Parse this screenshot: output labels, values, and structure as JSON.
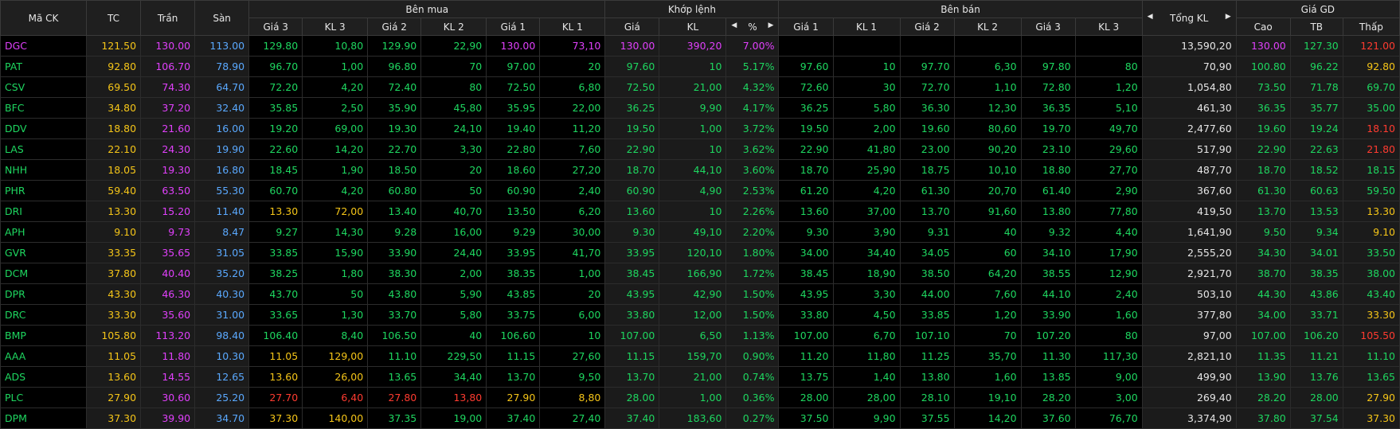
{
  "colors": {
    "up": "#1ed760",
    "down": "#ff3b30",
    "ref": "#f5c518",
    "ceil": "#e040fb",
    "floor": "#5aa9ff"
  },
  "header": {
    "ma_ck": "Mã CK",
    "tc": "TC",
    "tran": "Trần",
    "san": "Sàn",
    "ben_mua": "Bên mua",
    "khop_lenh": "Khớp lệnh",
    "ben_ban": "Bên bán",
    "tong_kl": "Tổng KL",
    "gia_gd": "Giá GD",
    "gia3": "Giá 3",
    "kl3": "KL 3",
    "gia2": "Giá 2",
    "kl2": "KL 2",
    "gia1": "Giá 1",
    "kl1": "KL 1",
    "gia": "Giá",
    "kl": "KL",
    "pct": "%",
    "cao": "Cao",
    "tb": "TB",
    "thap": "Thấp"
  },
  "rows": [
    {
      "sym": "DGC",
      "tc": "121.50",
      "tran": "130.00",
      "san": "113.00",
      "bg3": "129.80",
      "bk3": "10,80",
      "bg2": "129.90",
      "bk2": "22,90",
      "bg1": "130.00",
      "bk1": "73,10",
      "mp": "130.00",
      "mk": "390,20",
      "pct": "7.00%",
      "sg1": "",
      "sk1": "",
      "sg2": "",
      "sk2": "",
      "sg3": "",
      "sk3": "",
      "tot": "13,590,20",
      "hi": "130.00",
      "avg": "127.30",
      "lo": "121.00",
      "c": {
        "sym": "ceil",
        "bg3": "up",
        "bk3": "up",
        "bg2": "up",
        "bk2": "up",
        "bg1": "ceil",
        "bk1": "ceil",
        "mp": "ceil",
        "mk": "ceil",
        "pct": "ceil",
        "hi": "ceil",
        "avg": "up",
        "lo": "down"
      }
    },
    {
      "sym": "PAT",
      "tc": "92.80",
      "tran": "106.70",
      "san": "78.90",
      "bg3": "96.70",
      "bk3": "1,00",
      "bg2": "96.80",
      "bk2": "70",
      "bg1": "97.00",
      "bk1": "20",
      "mp": "97.60",
      "mk": "10",
      "pct": "5.17%",
      "sg1": "97.60",
      "sk1": "10",
      "sg2": "97.70",
      "sk2": "6,30",
      "sg3": "97.80",
      "sk3": "80",
      "tot": "70,90",
      "hi": "100.80",
      "avg": "96.22",
      "lo": "92.80",
      "c": {
        "lo": "ref"
      }
    },
    {
      "sym": "CSV",
      "tc": "69.50",
      "tran": "74.30",
      "san": "64.70",
      "bg3": "72.20",
      "bk3": "4,20",
      "bg2": "72.40",
      "bk2": "80",
      "bg1": "72.50",
      "bk1": "6,80",
      "mp": "72.50",
      "mk": "21,00",
      "pct": "4.32%",
      "sg1": "72.60",
      "sk1": "30",
      "sg2": "72.70",
      "sk2": "1,10",
      "sg3": "72.80",
      "sk3": "1,20",
      "tot": "1,054,80",
      "hi": "73.50",
      "avg": "71.78",
      "lo": "69.70",
      "c": {}
    },
    {
      "sym": "BFC",
      "tc": "34.80",
      "tran": "37.20",
      "san": "32.40",
      "bg3": "35.85",
      "bk3": "2,50",
      "bg2": "35.90",
      "bk2": "45,80",
      "bg1": "35.95",
      "bk1": "22,00",
      "mp": "36.25",
      "mk": "9,90",
      "pct": "4.17%",
      "sg1": "36.25",
      "sk1": "5,80",
      "sg2": "36.30",
      "sk2": "12,30",
      "sg3": "36.35",
      "sk3": "5,10",
      "tot": "461,30",
      "hi": "36.35",
      "avg": "35.77",
      "lo": "35.00",
      "c": {}
    },
    {
      "sym": "DDV",
      "tc": "18.80",
      "tran": "21.60",
      "san": "16.00",
      "bg3": "19.20",
      "bk3": "69,00",
      "bg2": "19.30",
      "bk2": "24,10",
      "bg1": "19.40",
      "bk1": "11,20",
      "mp": "19.50",
      "mk": "1,00",
      "pct": "3.72%",
      "sg1": "19.50",
      "sk1": "2,00",
      "sg2": "19.60",
      "sk2": "80,60",
      "sg3": "19.70",
      "sk3": "49,70",
      "tot": "2,477,60",
      "hi": "19.60",
      "avg": "19.24",
      "lo": "18.10",
      "c": {
        "lo": "down"
      }
    },
    {
      "sym": "LAS",
      "tc": "22.10",
      "tran": "24.30",
      "san": "19.90",
      "bg3": "22.60",
      "bk3": "14,20",
      "bg2": "22.70",
      "bk2": "3,30",
      "bg1": "22.80",
      "bk1": "7,60",
      "mp": "22.90",
      "mk": "10",
      "pct": "3.62%",
      "sg1": "22.90",
      "sk1": "41,80",
      "sg2": "23.00",
      "sk2": "90,20",
      "sg3": "23.10",
      "sk3": "29,60",
      "tot": "517,90",
      "hi": "22.90",
      "avg": "22.63",
      "lo": "21.80",
      "c": {
        "lo": "down"
      }
    },
    {
      "sym": "NHH",
      "tc": "18.05",
      "tran": "19.30",
      "san": "16.80",
      "bg3": "18.45",
      "bk3": "1,90",
      "bg2": "18.50",
      "bk2": "20",
      "bg1": "18.60",
      "bk1": "27,20",
      "mp": "18.70",
      "mk": "44,10",
      "pct": "3.60%",
      "sg1": "18.70",
      "sk1": "25,90",
      "sg2": "18.75",
      "sk2": "10,10",
      "sg3": "18.80",
      "sk3": "27,70",
      "tot": "487,70",
      "hi": "18.70",
      "avg": "18.52",
      "lo": "18.15",
      "c": {}
    },
    {
      "sym": "PHR",
      "tc": "59.40",
      "tran": "63.50",
      "san": "55.30",
      "bg3": "60.70",
      "bk3": "4,20",
      "bg2": "60.80",
      "bk2": "50",
      "bg1": "60.90",
      "bk1": "2,40",
      "mp": "60.90",
      "mk": "4,90",
      "pct": "2.53%",
      "sg1": "61.20",
      "sk1": "4,20",
      "sg2": "61.30",
      "sk2": "20,70",
      "sg3": "61.40",
      "sk3": "2,90",
      "tot": "367,60",
      "hi": "61.30",
      "avg": "60.63",
      "lo": "59.50",
      "c": {}
    },
    {
      "sym": "DRI",
      "tc": "13.30",
      "tran": "15.20",
      "san": "11.40",
      "bg3": "13.30",
      "bk3": "72,00",
      "bg2": "13.40",
      "bk2": "40,70",
      "bg1": "13.50",
      "bk1": "6,20",
      "mp": "13.60",
      "mk": "10",
      "pct": "2.26%",
      "sg1": "13.60",
      "sk1": "37,00",
      "sg2": "13.70",
      "sk2": "91,60",
      "sg3": "13.80",
      "sk3": "77,80",
      "tot": "419,50",
      "hi": "13.70",
      "avg": "13.53",
      "lo": "13.30",
      "c": {
        "bg3": "ref",
        "bk3": "ref",
        "lo": "ref"
      }
    },
    {
      "sym": "APH",
      "tc": "9.10",
      "tran": "9.73",
      "san": "8.47",
      "bg3": "9.27",
      "bk3": "14,30",
      "bg2": "9.28",
      "bk2": "16,00",
      "bg1": "9.29",
      "bk1": "30,00",
      "mp": "9.30",
      "mk": "49,10",
      "pct": "2.20%",
      "sg1": "9.30",
      "sk1": "3,90",
      "sg2": "9.31",
      "sk2": "40",
      "sg3": "9.32",
      "sk3": "4,40",
      "tot": "1,641,90",
      "hi": "9.50",
      "avg": "9.34",
      "lo": "9.10",
      "c": {
        "lo": "ref"
      }
    },
    {
      "sym": "GVR",
      "tc": "33.35",
      "tran": "35.65",
      "san": "31.05",
      "bg3": "33.85",
      "bk3": "15,90",
      "bg2": "33.90",
      "bk2": "24,40",
      "bg1": "33.95",
      "bk1": "41,70",
      "mp": "33.95",
      "mk": "120,10",
      "pct": "1.80%",
      "sg1": "34.00",
      "sk1": "34,40",
      "sg2": "34.05",
      "sk2": "60",
      "sg3": "34.10",
      "sk3": "17,90",
      "tot": "2,555,20",
      "hi": "34.30",
      "avg": "34.01",
      "lo": "33.50",
      "c": {}
    },
    {
      "sym": "DCM",
      "tc": "37.80",
      "tran": "40.40",
      "san": "35.20",
      "bg3": "38.25",
      "bk3": "1,80",
      "bg2": "38.30",
      "bk2": "2,00",
      "bg1": "38.35",
      "bk1": "1,00",
      "mp": "38.45",
      "mk": "166,90",
      "pct": "1.72%",
      "sg1": "38.45",
      "sk1": "18,90",
      "sg2": "38.50",
      "sk2": "64,20",
      "sg3": "38.55",
      "sk3": "12,90",
      "tot": "2,921,70",
      "hi": "38.70",
      "avg": "38.35",
      "lo": "38.00",
      "c": {}
    },
    {
      "sym": "DPR",
      "tc": "43.30",
      "tran": "46.30",
      "san": "40.30",
      "bg3": "43.70",
      "bk3": "50",
      "bg2": "43.80",
      "bk2": "5,90",
      "bg1": "43.85",
      "bk1": "20",
      "mp": "43.95",
      "mk": "42,90",
      "pct": "1.50%",
      "sg1": "43.95",
      "sk1": "3,30",
      "sg2": "44.00",
      "sk2": "7,60",
      "sg3": "44.10",
      "sk3": "2,40",
      "tot": "503,10",
      "hi": "44.30",
      "avg": "43.86",
      "lo": "43.40",
      "c": {}
    },
    {
      "sym": "DRC",
      "tc": "33.30",
      "tran": "35.60",
      "san": "31.00",
      "bg3": "33.65",
      "bk3": "1,30",
      "bg2": "33.70",
      "bk2": "5,80",
      "bg1": "33.75",
      "bk1": "6,00",
      "mp": "33.80",
      "mk": "12,00",
      "pct": "1.50%",
      "sg1": "33.80",
      "sk1": "4,50",
      "sg2": "33.85",
      "sk2": "1,20",
      "sg3": "33.90",
      "sk3": "1,60",
      "tot": "377,80",
      "hi": "34.00",
      "avg": "33.71",
      "lo": "33.30",
      "c": {
        "lo": "ref"
      }
    },
    {
      "sym": "BMP",
      "tc": "105.80",
      "tran": "113.20",
      "san": "98.40",
      "bg3": "106.40",
      "bk3": "8,40",
      "bg2": "106.50",
      "bk2": "40",
      "bg1": "106.60",
      "bk1": "10",
      "mp": "107.00",
      "mk": "6,50",
      "pct": "1.13%",
      "sg1": "107.00",
      "sk1": "6,70",
      "sg2": "107.10",
      "sk2": "70",
      "sg3": "107.20",
      "sk3": "80",
      "tot": "97,00",
      "hi": "107.00",
      "avg": "106.20",
      "lo": "105.50",
      "c": {
        "lo": "down"
      }
    },
    {
      "sym": "AAA",
      "tc": "11.05",
      "tran": "11.80",
      "san": "10.30",
      "bg3": "11.05",
      "bk3": "129,00",
      "bg2": "11.10",
      "bk2": "229,50",
      "bg1": "11.15",
      "bk1": "27,60",
      "mp": "11.15",
      "mk": "159,70",
      "pct": "0.90%",
      "sg1": "11.20",
      "sk1": "11,80",
      "sg2": "11.25",
      "sk2": "35,70",
      "sg3": "11.30",
      "sk3": "117,30",
      "tot": "2,821,10",
      "hi": "11.35",
      "avg": "11.21",
      "lo": "11.10",
      "c": {
        "bg3": "ref",
        "bk3": "ref"
      }
    },
    {
      "sym": "ADS",
      "tc": "13.60",
      "tran": "14.55",
      "san": "12.65",
      "bg3": "13.60",
      "bk3": "26,00",
      "bg2": "13.65",
      "bk2": "34,40",
      "bg1": "13.70",
      "bk1": "9,50",
      "mp": "13.70",
      "mk": "21,00",
      "pct": "0.74%",
      "sg1": "13.75",
      "sk1": "1,40",
      "sg2": "13.80",
      "sk2": "1,60",
      "sg3": "13.85",
      "sk3": "9,00",
      "tot": "499,90",
      "hi": "13.90",
      "avg": "13.76",
      "lo": "13.65",
      "c": {
        "bg3": "ref",
        "bk3": "ref"
      }
    },
    {
      "sym": "PLC",
      "tc": "27.90",
      "tran": "30.60",
      "san": "25.20",
      "bg3": "27.70",
      "bk3": "6,40",
      "bg2": "27.80",
      "bk2": "13,80",
      "bg1": "27.90",
      "bk1": "8,80",
      "mp": "28.00",
      "mk": "1,00",
      "pct": "0.36%",
      "sg1": "28.00",
      "sk1": "28,00",
      "sg2": "28.10",
      "sk2": "19,10",
      "sg3": "28.20",
      "sk3": "3,00",
      "tot": "269,40",
      "hi": "28.20",
      "avg": "28.00",
      "lo": "27.90",
      "c": {
        "bg3": "down",
        "bk3": "down",
        "bg2": "down",
        "bk2": "down",
        "bg1": "ref",
        "bk1": "ref",
        "avg": "up",
        "lo": "ref"
      }
    },
    {
      "sym": "DPM",
      "tc": "37.30",
      "tran": "39.90",
      "san": "34.70",
      "bg3": "37.30",
      "bk3": "140,00",
      "bg2": "37.35",
      "bk2": "19,00",
      "bg1": "37.40",
      "bk1": "27,40",
      "mp": "37.40",
      "mk": "183,60",
      "pct": "0.27%",
      "sg1": "37.50",
      "sk1": "9,90",
      "sg2": "37.55",
      "sk2": "14,20",
      "sg3": "37.60",
      "sk3": "76,70",
      "tot": "3,374,90",
      "hi": "37.80",
      "avg": "37.54",
      "lo": "37.30",
      "c": {
        "bg3": "ref",
        "bk3": "ref",
        "lo": "ref"
      }
    }
  ]
}
